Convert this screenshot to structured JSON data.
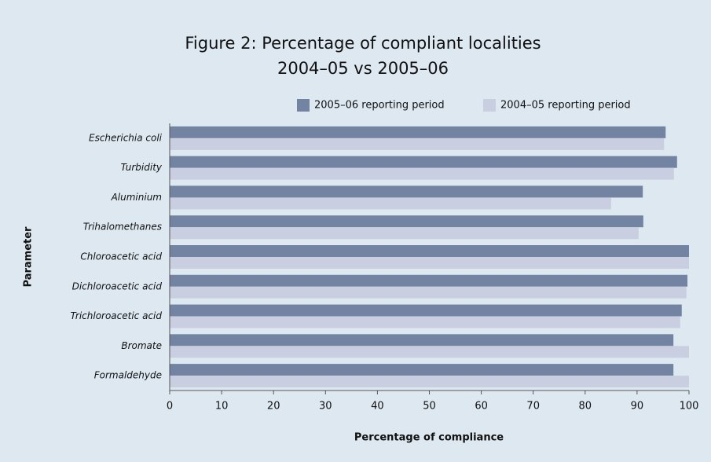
{
  "chart_data": {
    "type": "bar",
    "orientation": "horizontal",
    "title": "Figure 2: Percentage of compliant localities",
    "subtitle": "2004–05 vs 2005–06",
    "x_label": "Percentage of compliance",
    "y_label": "Parameter",
    "categories": [
      "Escherichia  coli",
      "Turbidity",
      "Aluminium",
      "Trihalomethanes",
      "Chloroacetic acid",
      "Dichloroacetic acid",
      "Trichloroacetic acid",
      "Bromate",
      "Formaldehyde"
    ],
    "series": [
      {
        "name": "2005–06 reporting period",
        "color": "#7384a3",
        "values": [
          95.5,
          97.7,
          91.1,
          91.2,
          100,
          99.7,
          98.6,
          97,
          97
        ]
      },
      {
        "name": "2004–05 reporting period",
        "color": "#c9cfe0",
        "values": [
          95.2,
          97.1,
          85,
          90.3,
          100,
          99.5,
          98.3,
          100,
          100
        ]
      }
    ],
    "xlim": [
      0,
      100
    ],
    "xticks": [
      0,
      10,
      20,
      30,
      40,
      50,
      60,
      70,
      80,
      90,
      100
    ],
    "legend": "top-right"
  }
}
